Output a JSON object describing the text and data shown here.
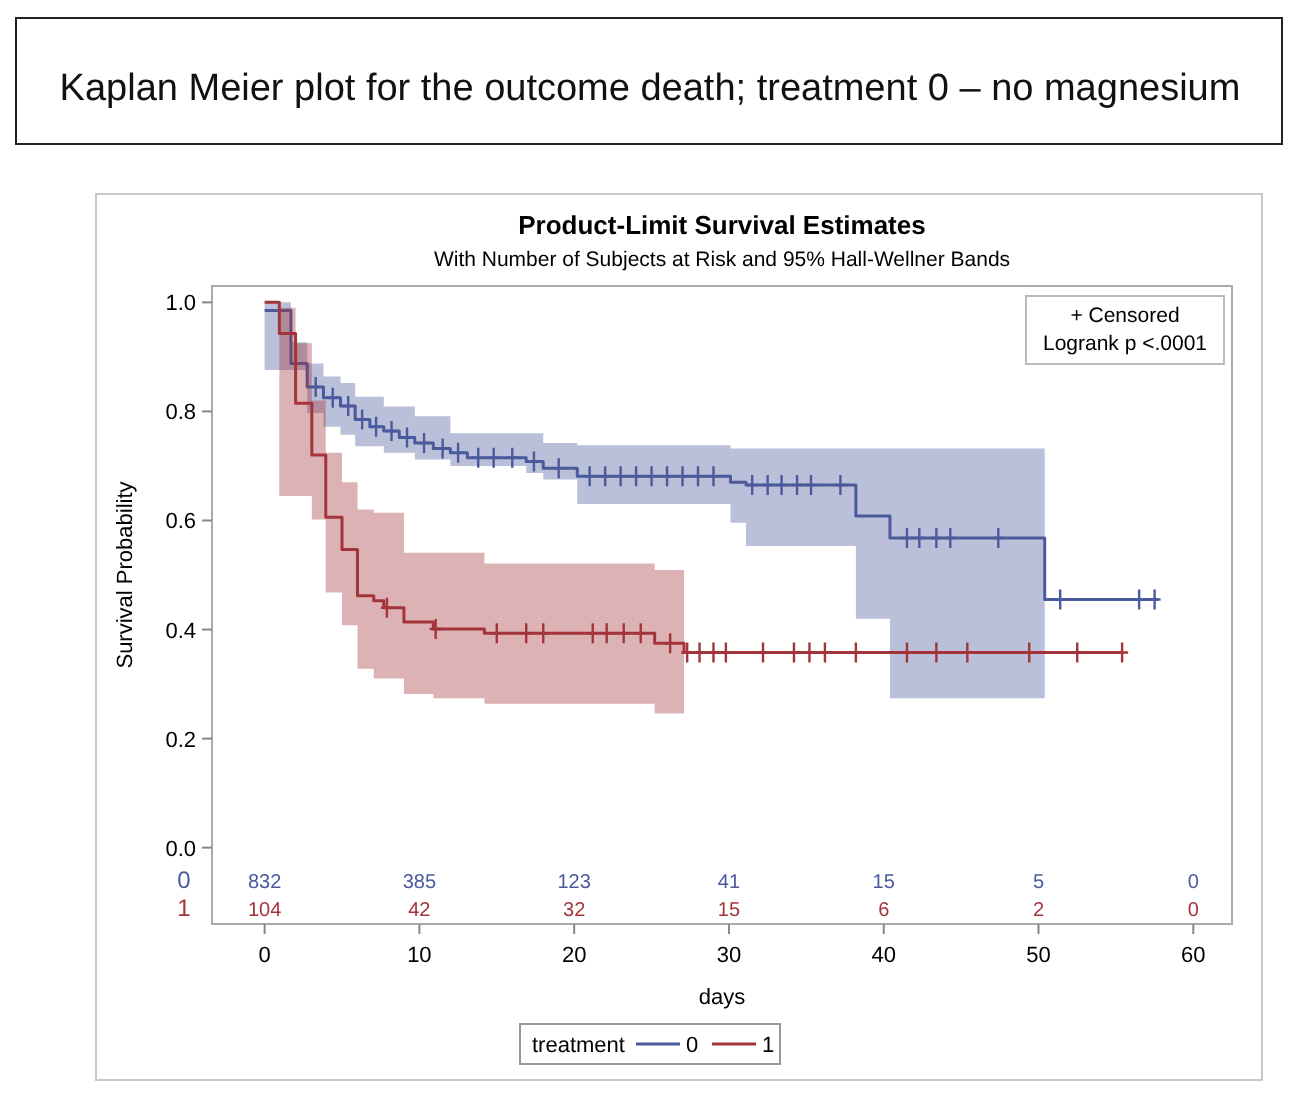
{
  "chart_data": {
    "type": "step",
    "title": "Product-Limit Survival Estimates",
    "subtitle": "With Number of Subjects at Risk and 95% Hall-Wellner Bands",
    "xlabel": "days",
    "ylabel": "Survival Probability",
    "legend_title": "treatment",
    "legend": "bottom",
    "grid": false,
    "xlim": [
      -3.4,
      62.5
    ],
    "xticks": [
      0,
      10,
      20,
      30,
      40,
      50,
      60
    ],
    "ylim": [
      -0.14,
      1.03
    ],
    "yticks": [
      {
        "value": 0,
        "label": "0.0"
      },
      0.2,
      0.4,
      0.6,
      0.8,
      {
        "value": 1,
        "label": "1.0"
      }
    ],
    "series": [
      {
        "name": "0",
        "color": "#4a5a9c",
        "x": [
          0,
          1.7,
          2.75,
          3.8,
          4.9,
          5.85,
          6.8,
          7.7,
          8.7,
          9.7,
          10.9,
          12,
          13.1,
          16.9,
          18,
          20.2,
          30.1,
          31.1,
          38.2,
          40.4,
          50.4,
          57.7
        ],
        "values": [
          0.985,
          0.888,
          0.845,
          0.825,
          0.81,
          0.785,
          0.772,
          0.764,
          0.752,
          0.742,
          0.732,
          0.724,
          0.715,
          0.708,
          0.696,
          0.681,
          0.67,
          0.665,
          0.608,
          0.568,
          0.455,
          0.455
        ],
        "upper": [
          1,
          0.927,
          0.888,
          0.864,
          0.852,
          0.827,
          0.827,
          0.809,
          0.809,
          0.791,
          0.791,
          0.76,
          0.76,
          0.76,
          0.742,
          0.738,
          0.732,
          0.732,
          0.732,
          0.732,
          0.732,
          null
        ],
        "lower": [
          0.876,
          0.876,
          0.797,
          0.772,
          0.757,
          0.736,
          0.736,
          0.724,
          0.724,
          0.712,
          0.712,
          0.7,
          0.7,
          0.687,
          0.675,
          0.63,
          0.596,
          0.553,
          0.42,
          0.274,
          0.274,
          null
        ]
      },
      {
        "name": "1",
        "color": "#a3353a",
        "x": [
          0,
          0.95,
          2,
          3.05,
          3.95,
          5,
          6,
          7.05,
          7.7,
          9,
          10.9,
          14.2,
          25.2,
          27.1,
          55.4
        ],
        "values": [
          1,
          0.943,
          0.815,
          0.72,
          0.606,
          0.547,
          0.462,
          0.453,
          0.44,
          0.414,
          0.401,
          0.393,
          0.375,
          0.358,
          0.358
        ],
        "upper": [
          1,
          0.99,
          0.925,
          0.82,
          0.724,
          0.67,
          0.62,
          0.614,
          0.614,
          0.541,
          0.541,
          0.521,
          0.509,
          0.509,
          null
        ],
        "lower": [
          1,
          0.645,
          0.645,
          0.602,
          0.468,
          0.408,
          0.328,
          0.31,
          0.31,
          0.282,
          0.274,
          0.264,
          0.246,
          0.246,
          null
        ]
      },
      {
        "type": "scatter",
        "marker": "cross",
        "color": "#4a5a9c",
        "x": [
          3.3,
          4.4,
          5.4,
          6.3,
          7.2,
          8.2,
          9.2,
          10.3,
          11.5,
          12.5,
          13.8,
          14.8,
          16.0,
          17.4,
          19,
          21,
          22,
          23,
          24,
          25,
          26,
          27,
          28,
          29,
          31.5,
          32.5,
          33.4,
          34.4,
          35.3,
          37.2,
          41.5,
          42.3,
          43.4,
          44.3,
          47.4,
          51.4,
          56.5,
          57.5
        ],
        "values": [
          0.845,
          0.825,
          0.81,
          0.785,
          0.772,
          0.764,
          0.752,
          0.742,
          0.732,
          0.724,
          0.715,
          0.715,
          0.715,
          0.708,
          0.696,
          0.681,
          0.681,
          0.681,
          0.681,
          0.681,
          0.681,
          0.681,
          0.681,
          0.681,
          0.665,
          0.665,
          0.665,
          0.665,
          0.665,
          0.665,
          0.568,
          0.568,
          0.568,
          0.568,
          0.568,
          0.455,
          0.455,
          0.455
        ]
      },
      {
        "type": "scatter",
        "marker": "cross",
        "color": "#a3353a",
        "x": [
          7.9,
          11.05,
          15,
          16.9,
          18,
          21.2,
          22.1,
          23.2,
          24.3,
          26.2,
          27.3,
          28.1,
          29,
          29.8,
          32.2,
          34.2,
          35.2,
          36.2,
          38.2,
          41.5,
          43.4,
          45.4,
          49.4,
          52.5,
          55.4
        ],
        "values": [
          0.44,
          0.401,
          0.393,
          0.393,
          0.393,
          0.393,
          0.393,
          0.393,
          0.393,
          0.375,
          0.358,
          0.358,
          0.358,
          0.358,
          0.358,
          0.358,
          0.358,
          0.358,
          0.358,
          0.358,
          0.358,
          0.358,
          0.358,
          0.358,
          0.358
        ]
      }
    ],
    "annotations": [
      "Kaplan Meier plot for the outcome death; treatment 0 – no magnesium",
      "+ Censored",
      "Logrank p <.0001",
      "0",
      "832",
      "385",
      "123",
      "41",
      "15",
      "5",
      "0",
      "1",
      "104",
      "42",
      "32",
      "15",
      "6",
      "2",
      "0"
    ]
  }
}
